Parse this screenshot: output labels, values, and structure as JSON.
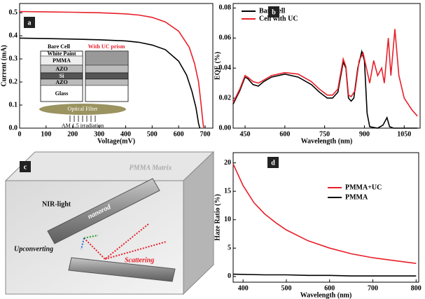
{
  "chart_data": [
    {
      "type": "line",
      "panel": "a",
      "x_label": "Voltage(mV)",
      "y_label": "Current (mA)",
      "xlim": [
        0,
        729
      ],
      "ylim": [
        0,
        0.54
      ],
      "xticks": [
        0,
        100,
        200,
        300,
        400,
        500,
        600,
        700
      ],
      "yticks": [
        {
          "value": 0,
          "label": "0.0"
        },
        0.1,
        0.2,
        0.3,
        0.4,
        0.5
      ],
      "series": [
        {
          "name": "Bare Cell",
          "color": "#000000",
          "x": [
            0,
            100,
            200,
            300,
            400,
            450,
            500,
            550,
            600,
            630,
            650,
            665,
            675,
            680
          ],
          "values": [
            0.39,
            0.388,
            0.386,
            0.383,
            0.378,
            0.372,
            0.36,
            0.34,
            0.29,
            0.23,
            0.16,
            0.09,
            0.02,
            0
          ]
        },
        {
          "name": "With UC prism",
          "color": "#e8202a",
          "x": [
            0,
            100,
            200,
            300,
            400,
            450,
            500,
            550,
            600,
            640,
            660,
            675,
            685,
            692,
            695
          ],
          "values": [
            0.505,
            0.504,
            0.502,
            0.5,
            0.495,
            0.49,
            0.48,
            0.46,
            0.42,
            0.35,
            0.28,
            0.2,
            0.1,
            0.02,
            0
          ]
        }
      ]
    },
    {
      "type": "line",
      "panel": "b",
      "x_label": "Wavelength (nm)",
      "y_label": "EQE (%)",
      "legend": "upper left",
      "xlim": [
        405,
        1110
      ],
      "ylim": [
        0,
        0.083
      ],
      "xticks": [
        450,
        600,
        750,
        900,
        1050
      ],
      "yticks": [
        {
          "value": 0,
          "label": "0.00"
        },
        0.02,
        0.04,
        0.06,
        0.08
      ],
      "series": [
        {
          "name": "Bare cell",
          "color": "#000000",
          "x": [
            405,
            430,
            450,
            460,
            480,
            500,
            520,
            550,
            600,
            650,
            700,
            730,
            760,
            780,
            800,
            820,
            830,
            840,
            850,
            860,
            875,
            890,
            900,
            910,
            920,
            950,
            970,
            985,
            995,
            1010,
            1100
          ],
          "values": [
            0.016,
            0.025,
            0.034,
            0.033,
            0.029,
            0.028,
            0.031,
            0.034,
            0.036,
            0.034,
            0.029,
            0.024,
            0.02,
            0.02,
            0.024,
            0.044,
            0.04,
            0.02,
            0.018,
            0.02,
            0.04,
            0.051,
            0.045,
            0.01,
            0.001,
            0,
            0.002,
            0.007,
            0.001,
            0,
            0
          ]
        },
        {
          "name": "Cell with UC",
          "color": "#e8202a",
          "x": [
            405,
            430,
            450,
            460,
            480,
            500,
            520,
            550,
            600,
            650,
            700,
            730,
            760,
            780,
            800,
            820,
            830,
            840,
            850,
            865,
            880,
            895,
            910,
            920,
            935,
            950,
            965,
            975,
            990,
            1000,
            1015,
            1030,
            1050,
            1080,
            1100
          ],
          "values": [
            0.017,
            0.026,
            0.035,
            0.034,
            0.031,
            0.03,
            0.032,
            0.035,
            0.037,
            0.036,
            0.031,
            0.026,
            0.022,
            0.022,
            0.026,
            0.046,
            0.041,
            0.022,
            0.021,
            0.025,
            0.045,
            0.05,
            0.038,
            0.03,
            0.045,
            0.035,
            0.04,
            0.03,
            0.06,
            0.035,
            0.066,
            0.035,
            0.02,
            0.012,
            0.008
          ]
        }
      ]
    },
    {
      "type": "line",
      "panel": "d",
      "x_label": "Wavelength (nm)",
      "y_label": "Haze Ratio (%)",
      "legend": "upper right",
      "xlim": [
        377,
        806
      ],
      "ylim": [
        -1,
        21.8
      ],
      "xticks": [
        400,
        500,
        600,
        700,
        800
      ],
      "yticks": [
        0,
        5,
        10,
        15,
        20
      ],
      "series": [
        {
          "name": "PMMA+UC",
          "color": "#e8202a",
          "x": [
            377,
            400,
            425,
            450,
            475,
            500,
            550,
            600,
            650,
            700,
            750,
            800
          ],
          "values": [
            19.8,
            16,
            13,
            11,
            9.5,
            8.2,
            6.3,
            5,
            4,
            3.3,
            2.8,
            2.3
          ]
        },
        {
          "name": "PMMA",
          "color": "#000000",
          "x": [
            377,
            450,
            500,
            550,
            600,
            650,
            700,
            750,
            800
          ],
          "values": [
            0.4,
            0.3,
            0.3,
            0.2,
            0.2,
            0.1,
            0.1,
            0.1,
            0.1
          ]
        }
      ]
    }
  ],
  "inset_a": {
    "bare_cell": "Bare Cell",
    "with_uc": "With UC prism",
    "layers": [
      "White Paint",
      "PMMA",
      "AZO",
      "Si",
      "AZO",
      "Glass"
    ],
    "filter": "Optical Filter",
    "source": "AM 1.5 irradiation"
  },
  "diagram_c": {
    "panel": "c",
    "matrix": "PMMA Matrix",
    "light": "NIR-light",
    "rod": "nanorod",
    "upconverting": "Upconverting",
    "scattering": "Scattering"
  }
}
